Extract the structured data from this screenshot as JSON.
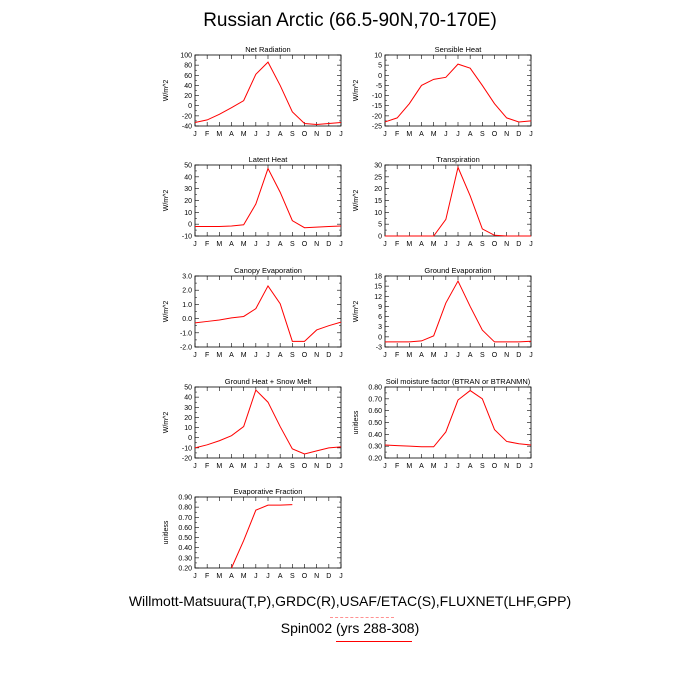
{
  "title": "Russian Arctic (66.5-90N,70-170E)",
  "footer": {
    "sources": "Willmott-Matsuura(T,P),GRDC(R),USAF/ETAC(S),FLUXNET(LHF,GPP)",
    "run": "Spin002 (yrs 288-308)"
  },
  "colors": {
    "model": "#ff0000"
  },
  "chart_data": [
    {
      "type": "line",
      "title": "Net Radiation",
      "ylabel": "W/m^2",
      "x": [
        "J",
        "F",
        "M",
        "A",
        "M",
        "J",
        "J",
        "A",
        "S",
        "O",
        "N",
        "D",
        "J"
      ],
      "ylim": [
        -40,
        100
      ],
      "yticks": [
        "100",
        "80",
        "60",
        "40",
        "20",
        "0",
        "-20",
        "-40"
      ],
      "series": [
        {
          "values": [
            -33,
            -28,
            -17,
            -4,
            10,
            62,
            86,
            40,
            -12,
            -35,
            -37,
            -35,
            -33
          ]
        }
      ]
    },
    {
      "type": "line",
      "title": "Sensible Heat",
      "ylabel": "W/m^2",
      "x": [
        "J",
        "F",
        "M",
        "A",
        "M",
        "J",
        "J",
        "A",
        "S",
        "O",
        "N",
        "D",
        "J"
      ],
      "ylim": [
        -25,
        10
      ],
      "yticks": [
        "10",
        "5",
        "0",
        "-5",
        "-10",
        "-15",
        "-20",
        "-25"
      ],
      "series": [
        {
          "values": [
            -23,
            -21,
            -14,
            -5,
            -2,
            -1,
            5.5,
            3.5,
            -5,
            -14,
            -21,
            -23,
            -22.5
          ]
        }
      ]
    },
    {
      "type": "line",
      "title": "Latent Heat",
      "ylabel": "W/m^2",
      "x": [
        "J",
        "F",
        "M",
        "A",
        "M",
        "J",
        "J",
        "A",
        "S",
        "O",
        "N",
        "D",
        "J"
      ],
      "ylim": [
        -10,
        50
      ],
      "yticks": [
        "50",
        "40",
        "30",
        "20",
        "10",
        "0",
        "-10"
      ],
      "series": [
        {
          "values": [
            -2,
            -2,
            -2,
            -1.5,
            -0.5,
            17,
            47,
            27,
            3,
            -3,
            -2.5,
            -2,
            -1.5
          ]
        }
      ]
    },
    {
      "type": "line",
      "title": "Transpiration",
      "ylabel": "W/m^2",
      "x": [
        "J",
        "F",
        "M",
        "A",
        "M",
        "J",
        "J",
        "A",
        "S",
        "O",
        "N",
        "D",
        "J"
      ],
      "ylim": [
        0,
        30
      ],
      "yticks": [
        "30",
        "25",
        "20",
        "15",
        "10",
        "5",
        "0"
      ],
      "series": [
        {
          "values": [
            0,
            0,
            0,
            0,
            0,
            7,
            29,
            17,
            3,
            0.3,
            0,
            0,
            0
          ]
        }
      ]
    },
    {
      "type": "line",
      "title": "Canopy Evaporation",
      "ylabel": "W/m^2",
      "x": [
        "J",
        "F",
        "M",
        "A",
        "M",
        "J",
        "J",
        "A",
        "S",
        "O",
        "N",
        "D",
        "J"
      ],
      "ylim": [
        -2.0,
        3.0
      ],
      "yticks": [
        "3.0",
        "2.0",
        "1.0",
        "0.0",
        "-1.0",
        "-2.0"
      ],
      "series": [
        {
          "values": [
            -0.3,
            -0.2,
            -0.1,
            0.05,
            0.15,
            0.7,
            2.3,
            1.05,
            -1.6,
            -1.6,
            -0.8,
            -0.5,
            -0.25
          ]
        }
      ]
    },
    {
      "type": "line",
      "title": "Ground Evaporation",
      "ylabel": "W/m^2",
      "x": [
        "J",
        "F",
        "M",
        "A",
        "M",
        "J",
        "J",
        "A",
        "S",
        "O",
        "N",
        "D",
        "J"
      ],
      "ylim": [
        -3,
        18
      ],
      "yticks": [
        "18",
        "15",
        "12",
        "9",
        "6",
        "3",
        "0",
        "-3"
      ],
      "series": [
        {
          "values": [
            -1.5,
            -1.5,
            -1.5,
            -1.2,
            0.3,
            10,
            16.5,
            9,
            2,
            -1.5,
            -1.5,
            -1.5,
            -1.3
          ]
        }
      ]
    },
    {
      "type": "line",
      "title": "Ground Heat + Snow Melt",
      "ylabel": "W/m^2",
      "x": [
        "J",
        "F",
        "M",
        "A",
        "M",
        "J",
        "J",
        "A",
        "S",
        "O",
        "N",
        "D",
        "J"
      ],
      "ylim": [
        -20,
        50
      ],
      "yticks": [
        "50",
        "40",
        "30",
        "20",
        "10",
        "0",
        "-10",
        "-20"
      ],
      "series": [
        {
          "values": [
            -10,
            -7,
            -3,
            2,
            11,
            47,
            35,
            11,
            -11,
            -16,
            -13,
            -10,
            -9
          ]
        }
      ]
    },
    {
      "type": "line",
      "title": "Soil moisture factor (BTRAN or BTRANMN)",
      "ylabel": "unitless",
      "x": [
        "J",
        "F",
        "M",
        "A",
        "M",
        "J",
        "J",
        "A",
        "S",
        "O",
        "N",
        "D",
        "J"
      ],
      "ylim": [
        0.2,
        0.8
      ],
      "yticks": [
        "0.80",
        "0.70",
        "0.60",
        "0.50",
        "0.40",
        "0.30",
        "0.20"
      ],
      "series": [
        {
          "values": [
            0.31,
            0.305,
            0.3,
            0.295,
            0.295,
            0.42,
            0.69,
            0.77,
            0.7,
            0.44,
            0.34,
            0.32,
            0.31
          ]
        }
      ]
    },
    {
      "type": "line",
      "title": "Evaporative Fraction",
      "ylabel": "unitless",
      "x": [
        "J",
        "F",
        "M",
        "A",
        "M",
        "J",
        "J",
        "A",
        "S",
        "O",
        "N",
        "D",
        "J"
      ],
      "ylim": [
        0.2,
        0.9
      ],
      "yticks": [
        "0.90",
        "0.80",
        "0.70",
        "0.60",
        "0.50",
        "0.40",
        "0.30",
        "0.20"
      ],
      "series": [
        {
          "values": [
            null,
            null,
            null,
            0.2,
            0.47,
            0.77,
            0.82,
            0.82,
            0.825,
            null,
            null,
            null,
            null
          ]
        }
      ]
    }
  ]
}
